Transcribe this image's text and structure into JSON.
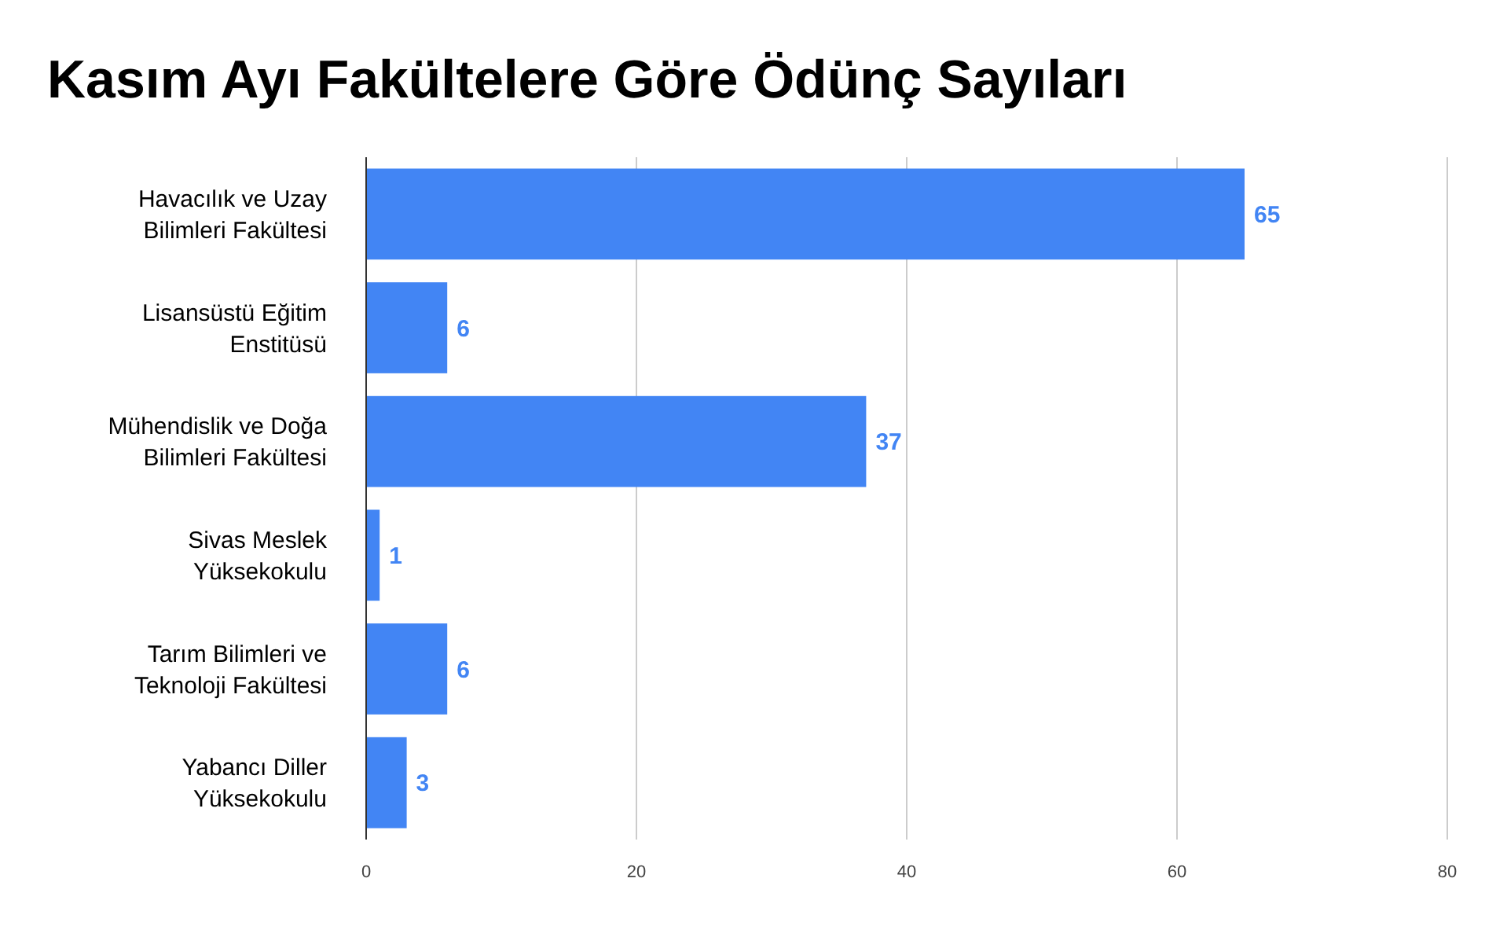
{
  "chart_data": {
    "type": "bar",
    "orientation": "horizontal",
    "title": "Kasım Ayı Fakültelere Göre Ödünç Sayıları",
    "categories": [
      "Havacılık ve Uzay Bilimleri Fakültesi",
      "Lisansüstü Eğitim Enstitüsü",
      "Mühendislik ve Doğa Bilimleri Fakültesi",
      "Sivas Meslek Yüksekokulu",
      "Tarım Bilimleri ve Teknoloji Fakültesi",
      "Yabancı Diller Yüksekokulu"
    ],
    "values": [
      65,
      6,
      37,
      1,
      6,
      3
    ],
    "color": "#4285f4",
    "xlim": [
      0,
      80
    ],
    "xticks": [
      0,
      20,
      40,
      60,
      80
    ],
    "grid": "x",
    "data_labels": true
  }
}
